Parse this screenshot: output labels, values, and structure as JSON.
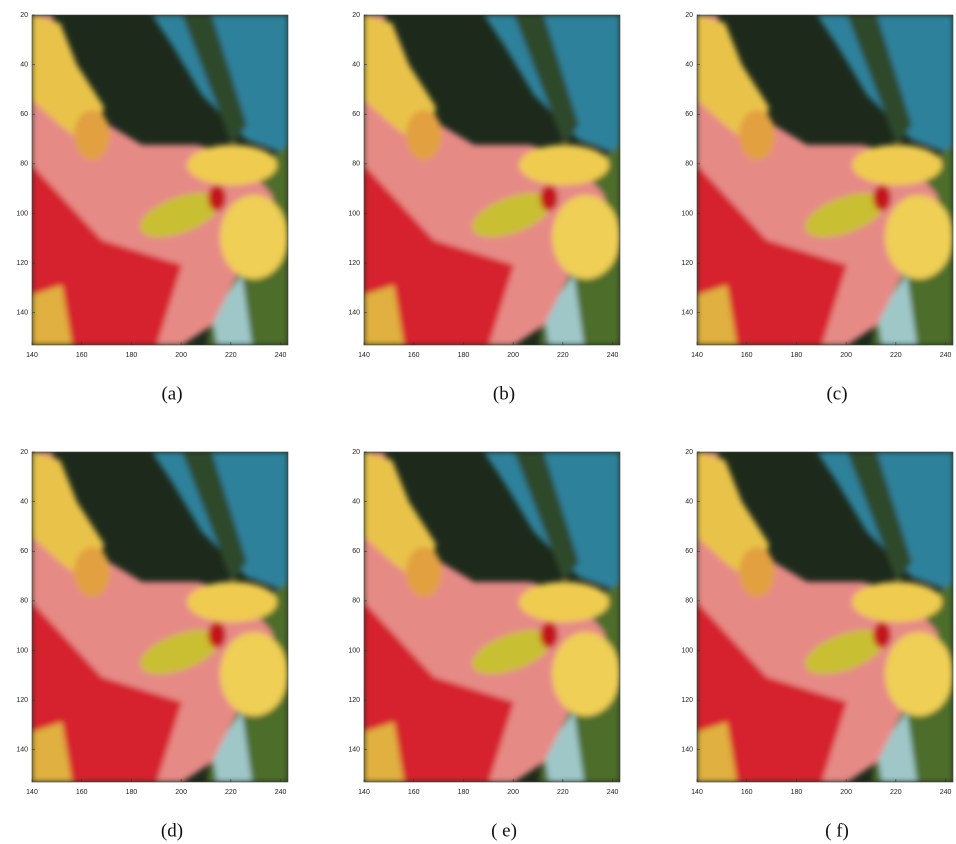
{
  "figure": {
    "axes": {
      "xlim": [
        140,
        243
      ],
      "ylim": [
        20,
        153
      ],
      "xticks": [
        140,
        160,
        180,
        200,
        220,
        240
      ],
      "yticks": [
        20,
        40,
        60,
        80,
        100,
        120,
        140
      ]
    },
    "panels": [
      {
        "caption": "(a)"
      },
      {
        "caption": "(b)"
      },
      {
        "caption": "(c)"
      },
      {
        "caption": "(d)"
      },
      {
        "caption": "( e)"
      },
      {
        "caption": "( f)"
      }
    ]
  }
}
